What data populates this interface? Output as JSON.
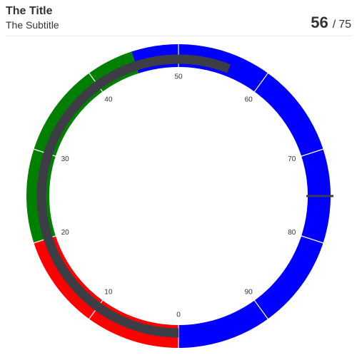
{
  "header": {
    "title": "The Title",
    "subtitle": "The Subtitle",
    "value": "56",
    "separator": "/",
    "max": "75"
  },
  "chart_data": {
    "type": "radial-gauge",
    "value": 56,
    "target": 75,
    "scale": {
      "min": 0,
      "max": 100
    },
    "ticks": [
      0,
      10,
      20,
      30,
      40,
      50,
      60,
      70,
      80,
      90
    ],
    "bands": [
      {
        "from": 0,
        "to": 20,
        "color": "#ff0000"
      },
      {
        "from": 20,
        "to": 45,
        "color": "#008000"
      },
      {
        "from": 45,
        "to": 100,
        "color": "#0000ff"
      }
    ],
    "colors": {
      "value_bar": "#3d3d45",
      "divider": "#ffffff",
      "tick_label": "#333333"
    }
  }
}
